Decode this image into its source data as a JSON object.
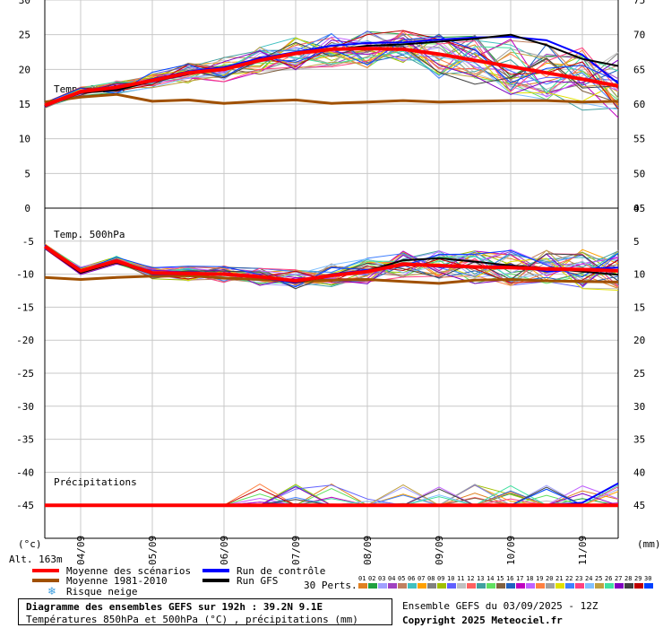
{
  "header": {
    "alt": "Alt. 163m",
    "unit_left": "(°c)",
    "unit_right": "(mm)"
  },
  "legend": {
    "mean_scenarios": "Moyenne des scénarios",
    "mean_climo": "Moyenne 1981-2010",
    "snow_risk": "Risque neige",
    "control_run": "Run de contrôle",
    "gfs_run": "Run GFS",
    "perts_label": "30 Perts.",
    "perts": [
      "01",
      "02",
      "03",
      "04",
      "05",
      "06",
      "07",
      "08",
      "09",
      "10",
      "11",
      "12",
      "13",
      "14",
      "15",
      "16",
      "17",
      "18",
      "19",
      "20",
      "21",
      "22",
      "23",
      "24",
      "25",
      "26",
      "27",
      "28",
      "29",
      "30"
    ],
    "pert_colors": [
      "#e08020",
      "#20a040",
      "#a0a0ff",
      "#a040c0",
      "#c08060",
      "#40c0c0",
      "#ffa000",
      "#808080",
      "#a0c000",
      "#6060ff",
      "#c0c0c0",
      "#ff6060",
      "#40a0a0",
      "#60e060",
      "#806040",
      "#2060c0",
      "#c000c0",
      "#c060ff",
      "#ff8040",
      "#a0a0a0",
      "#e0e000",
      "#4080ff",
      "#ff4080",
      "#80c0ff",
      "#c0a040",
      "#40e0a0",
      "#8000c0",
      "#404040",
      "#c00000",
      "#0040ff"
    ],
    "colors": {
      "mean": "#ff0000",
      "climo": "#a05000",
      "control": "#0000ff",
      "gfs": "#000000"
    }
  },
  "footer": {
    "title": "Diagramme des ensembles GEFS sur 192h : 39.2N 9.1E",
    "subtitle": "Températures 850hPa et 500hPa (°C) , précipitations (mm)",
    "run": "Ensemble GEFS du 03/09/2025 - 12Z",
    "copyright": "Copyright 2025 Meteociel.fr"
  },
  "chart_data": [
    {
      "type": "line",
      "panel": "Temp. 850hPa",
      "ylim": [
        0,
        30
      ],
      "y2lim": [
        45,
        75
      ],
      "yticks": [
        0,
        5,
        10,
        15,
        20,
        25,
        30
      ],
      "y2ticks": [
        45,
        50,
        55,
        60,
        65,
        70,
        75
      ],
      "x": [
        0,
        0.5,
        1,
        1.5,
        2,
        2.5,
        3,
        3.5,
        4,
        4.5,
        5,
        5.5,
        6,
        6.5,
        7,
        7.5,
        8
      ],
      "xticks": [
        "04/09",
        "05/09",
        "06/09",
        "07/09",
        "08/09",
        "09/09",
        "10/09",
        "11/09"
      ],
      "series": [
        {
          "role": "mean",
          "values": [
            14.8,
            16.8,
            17.4,
            18.4,
            19.5,
            20.0,
            21.3,
            22.3,
            22.9,
            23.0,
            22.9,
            22.2,
            21.3,
            20.4,
            19.5,
            18.6,
            17.6
          ]
        },
        {
          "role": "climo",
          "values": [
            15.3,
            16.0,
            16.4,
            15.4,
            15.6,
            15.1,
            15.4,
            15.6,
            15.1,
            15.3,
            15.5,
            15.3,
            15.4,
            15.5,
            15.5,
            15.3,
            15.4
          ]
        },
        {
          "role": "control",
          "values": [
            14.6,
            16.8,
            17.2,
            18.6,
            19.7,
            20.3,
            21.6,
            22.5,
            23.4,
            23.8,
            23.9,
            24.3,
            24.6,
            24.7,
            24.2,
            22.1,
            18.0
          ]
        },
        {
          "role": "gfs",
          "values": [
            14.7,
            16.6,
            17.0,
            18.3,
            19.3,
            20.1,
            21.2,
            22.2,
            22.8,
            23.4,
            23.6,
            24.0,
            24.4,
            25.0,
            23.5,
            21.5,
            20.5
          ]
        }
      ]
    },
    {
      "type": "line",
      "panel": "Temp. 500hPa",
      "ylim": [
        -50,
        0
      ],
      "y2lim": [
        -5,
        45
      ],
      "yticks": [
        -45,
        -40,
        -35,
        -30,
        -25,
        -20,
        -15,
        -10,
        -5,
        0
      ],
      "y2ticks": [
        0,
        5,
        10,
        15,
        20,
        25,
        30,
        35,
        40,
        45
      ],
      "x": [
        0,
        0.5,
        1,
        1.5,
        2,
        2.5,
        3,
        3.5,
        4,
        4.5,
        5,
        5.5,
        6,
        6.5,
        7,
        7.5,
        8
      ],
      "series": [
        {
          "role": "mean",
          "values": [
            -5.8,
            -9.5,
            -8.0,
            -9.8,
            -9.9,
            -10.0,
            -10.4,
            -11.0,
            -10.2,
            -9.6,
            -8.5,
            -8.7,
            -8.9,
            -9.0,
            -9.2,
            -9.3,
            -9.5
          ]
        },
        {
          "role": "climo",
          "values": [
            -10.5,
            -10.8,
            -10.5,
            -10.3,
            -10.2,
            -10.6,
            -10.8,
            -11.1,
            -10.9,
            -10.8,
            -11.1,
            -11.4,
            -10.9,
            -10.8,
            -11.0,
            -11.1,
            -11.2
          ]
        },
        {
          "role": "control",
          "values": [
            -5.6,
            -9.6,
            -7.8,
            -10.0,
            -10.0,
            -10.1,
            -10.5,
            -11.3,
            -10.0,
            -9.4,
            -8.4,
            -8.9,
            -9.0,
            -8.6,
            -9.6,
            -9.2,
            -9.0
          ]
        },
        {
          "role": "gfs",
          "values": [
            -5.9,
            -9.8,
            -8.2,
            -9.9,
            -9.8,
            -10.0,
            -10.3,
            -11.2,
            -10.3,
            -9.5,
            -7.9,
            -7.6,
            -8.1,
            -8.7,
            -9.1,
            -9.6,
            -10.1
          ]
        }
      ]
    },
    {
      "type": "line",
      "panel": "Précipitations",
      "ylim": [
        0,
        10
      ],
      "x": [
        0,
        0.5,
        1,
        1.5,
        2,
        2.5,
        3,
        3.5,
        4,
        4.5,
        5,
        5.5,
        6,
        6.5,
        7,
        7.5,
        8
      ],
      "series": [
        {
          "role": "mean",
          "values": [
            0,
            0,
            0,
            0,
            0,
            0,
            0,
            0,
            0,
            0,
            0,
            0,
            0,
            0,
            0,
            0,
            0
          ]
        },
        {
          "role": "control",
          "values": [
            0,
            0,
            0,
            0,
            0,
            0,
            0,
            0,
            0,
            0,
            0,
            0,
            0,
            0,
            0,
            0.4,
            3.5
          ]
        }
      ]
    }
  ]
}
